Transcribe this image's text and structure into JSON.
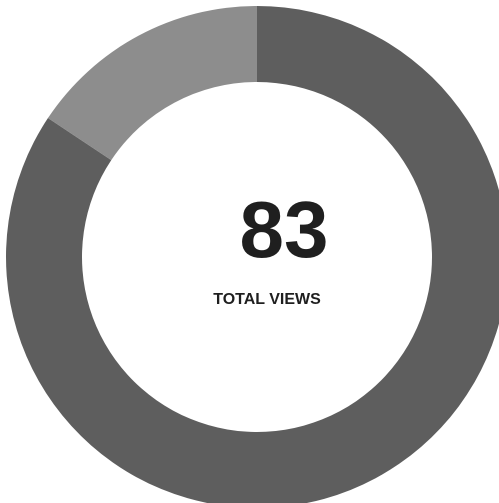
{
  "chart_data": {
    "type": "pie",
    "style": "donut",
    "center_value": "83",
    "center_label": "TOTAL VIEWS",
    "slices": [
      {
        "value": 70,
        "color": "#5e5e5e"
      },
      {
        "value": 13,
        "color": "#8d8d8d"
      }
    ]
  }
}
